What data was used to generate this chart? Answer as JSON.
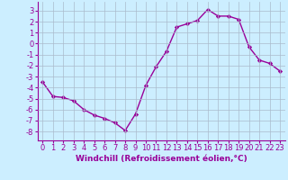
{
  "xlabel": "Windchill (Refroidissement éolien,°C)",
  "hours": [
    0,
    1,
    2,
    3,
    4,
    5,
    6,
    7,
    8,
    9,
    10,
    11,
    12,
    13,
    14,
    15,
    16,
    17,
    18,
    19,
    20,
    21,
    22,
    23
  ],
  "values": [
    -3.5,
    -4.8,
    -4.9,
    -5.2,
    -6.0,
    -6.5,
    -6.8,
    -7.2,
    -7.9,
    -6.4,
    -3.8,
    -2.1,
    -0.7,
    1.5,
    1.8,
    2.1,
    3.1,
    2.5,
    2.5,
    2.2,
    -0.3,
    -1.5,
    -1.8,
    -2.5
  ],
  "line_color": "#990099",
  "marker": "D",
  "marker_size": 2.2,
  "bg_color": "#cceeff",
  "grid_color": "#aabbcc",
  "ylim": [
    -8.8,
    3.8
  ],
  "yticks": [
    -8,
    -7,
    -6,
    -5,
    -4,
    -3,
    -2,
    -1,
    0,
    1,
    2,
    3
  ],
  "xlabel_fontsize": 6.5,
  "tick_fontsize": 6.0,
  "line_width": 1.0
}
